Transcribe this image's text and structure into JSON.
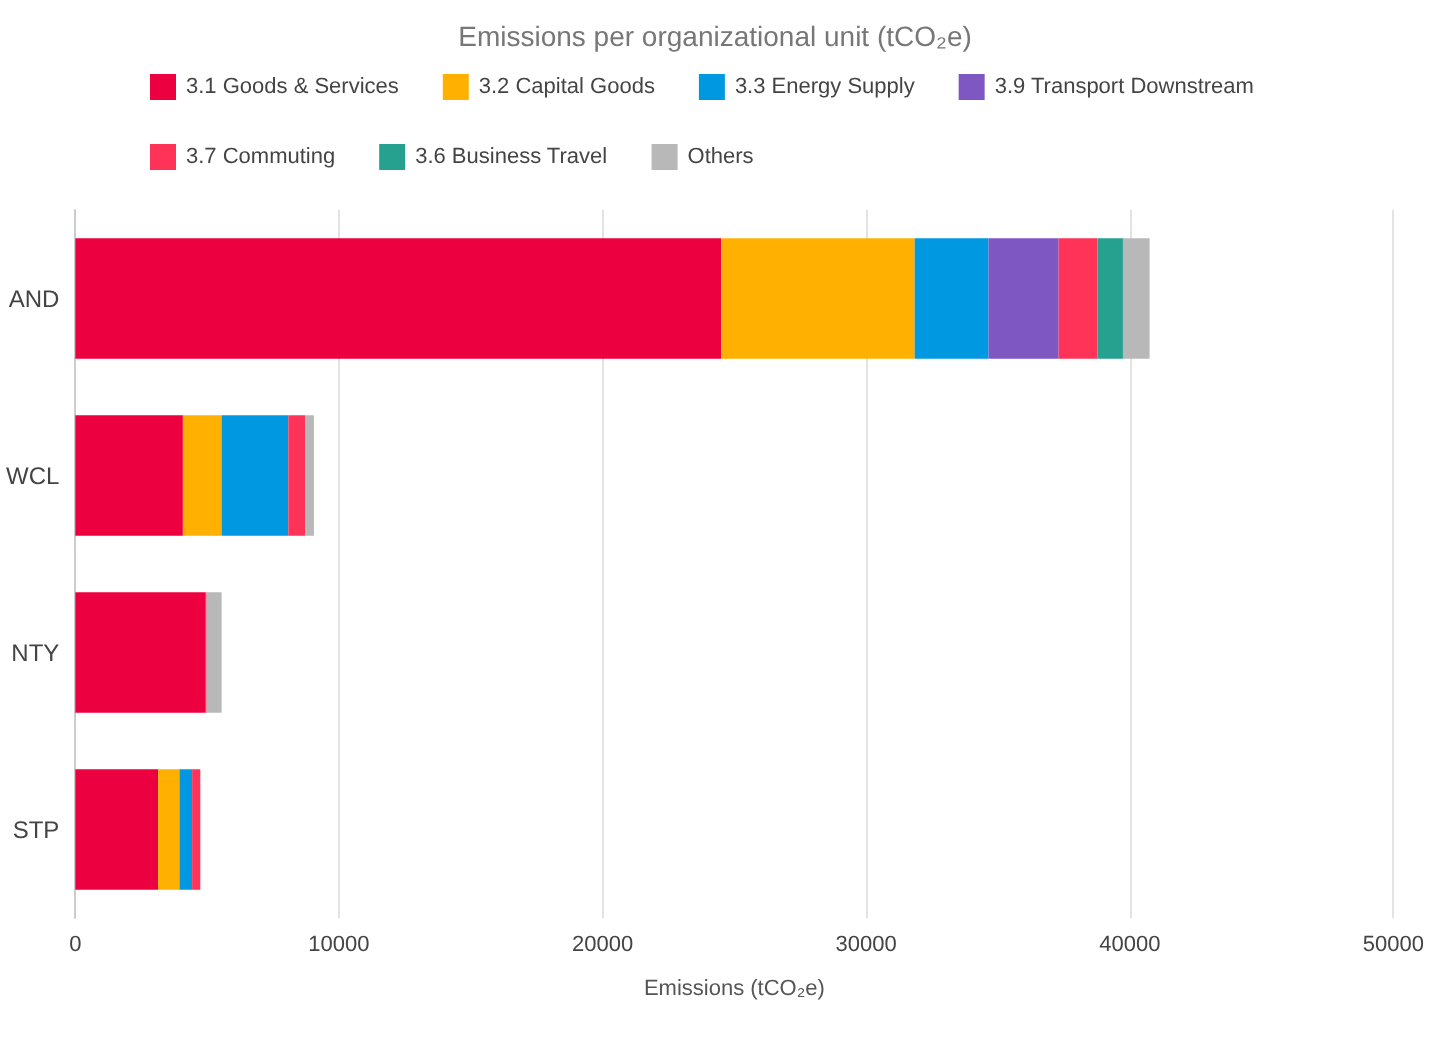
{
  "chart_data": {
    "type": "bar",
    "orientation": "horizontal",
    "stacked": true,
    "title": "Emissions per organizational unit (tCO₂e)",
    "xlabel": "Emissions (tCO₂e)",
    "categories": [
      "AND",
      "WCL",
      "NTY",
      "STP"
    ],
    "series": [
      {
        "name": "3.1 Goods & Services",
        "color": "#ec0040",
        "values": [
          24500,
          4080,
          4920,
          3140
        ]
      },
      {
        "name": "3.2 Capital Goods",
        "color": "#ffb000",
        "values": [
          7340,
          1470,
          0,
          810
        ]
      },
      {
        "name": "3.3 Energy Supply",
        "color": "#0098e0",
        "values": [
          2800,
          2530,
          0,
          480
        ]
      },
      {
        "name": "3.9 Transport Downstream",
        "color": "#7e57c2",
        "values": [
          2660,
          0,
          0,
          0
        ]
      },
      {
        "name": "3.7 Commuting",
        "color": "#ff3358",
        "values": [
          1470,
          640,
          60,
          310
        ]
      },
      {
        "name": "3.6 Business Travel",
        "color": "#26a08f",
        "values": [
          970,
          0,
          0,
          0
        ]
      },
      {
        "name": "Others",
        "color": "#b8b8b8",
        "values": [
          1010,
          330,
          570,
          0
        ]
      }
    ],
    "xlim": [
      0,
      50000
    ],
    "xticks": [
      0,
      10000,
      20000,
      30000,
      40000,
      50000
    ],
    "grid": "x",
    "legend": "top"
  }
}
